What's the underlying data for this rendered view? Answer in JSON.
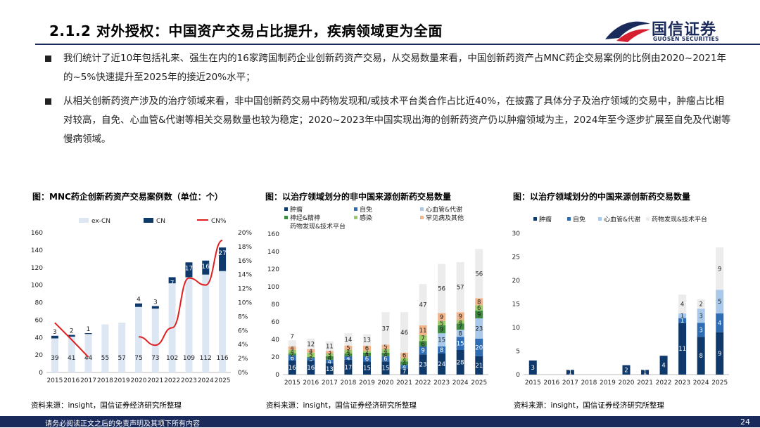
{
  "header": {
    "title": "2.1.2 对外授权：中国资产交易占比提升，疾病领域更为全面",
    "logo_cn": "国信证券",
    "logo_en": "GUOSEN SECURITIES"
  },
  "bullets": [
    "我们统计了近10年包括礼来、强生在内的16家跨国制药企业创新药资产交易，从交易数量来看，中国创新药资产占MNC药企交易案例的比例由2020~2021年的~5%快速提升至2025年的接近20%水平；",
    "从相关创新药资产涉及的治疗领域来看，非中国创新药交易中药物发现和/或技术平台类合作占比近40%，在披露了具体分子及治疗领域的交易中，肿瘤占比相对较高，自免、心血管&代谢等相关交易数量也较为稳定；2020~2023年中国实现出海的创新药资产仍以肿瘤领域为主，2024年至今逐步扩展至自免及代谢等慢病领域。"
  ],
  "charts": [
    {
      "title": "图：MNC药企创新药资产交易案例数（单位：个）",
      "source": "资料来源：insight，国信证券经济研究所整理"
    },
    {
      "title": "图：以治疗领域划分的非中国来源创新药交易数量",
      "source": "资料来源：insight，国信证券经济研究所整理"
    },
    {
      "title": "图：以治疗领域划分的中国来源创新药交易数量",
      "source": "资料来源：insight，国信证券经济研究所整理"
    }
  ],
  "footer": {
    "disclaimer": "请务必阅读正文之后的免责声明及其项下所有内容",
    "page": "24"
  },
  "colors": {
    "navy": "#1a2a5a",
    "excn": "#dde7f3",
    "cn": "#10396b",
    "red": "#e02020"
  },
  "chart_data": [
    {
      "type": "bar",
      "title": "MNC药企创新药资产交易案例数（单位：个）",
      "categories": [
        "2015",
        "2016",
        "2017",
        "2018",
        "2019",
        "2020",
        "2021",
        "2022",
        "2023",
        "2024",
        "2025"
      ],
      "series": [
        {
          "name": "ex-CN",
          "values": [
            39,
            41,
            44,
            55,
            57,
            75,
            73,
            102,
            109,
            112,
            116
          ]
        },
        {
          "name": "CN",
          "values": [
            3,
            2,
            1,
            0,
            0,
            4,
            3,
            7,
            17,
            16,
            27
          ]
        },
        {
          "name": "CN%",
          "values": [
            7.1,
            4.7,
            2.2,
            0,
            0,
            5.1,
            3.9,
            6.4,
            13.5,
            12.5,
            18.9
          ]
        }
      ],
      "ylim": [
        0,
        160
      ],
      "y2lim": [
        0,
        20
      ],
      "yticks": [
        "0",
        "20",
        "40",
        "60",
        "80",
        "100",
        "120",
        "140",
        "160"
      ],
      "y2ticks": [
        "0%",
        "2%",
        "4%",
        "6%",
        "8%",
        "10%",
        "12%",
        "14%",
        "16%",
        "18%",
        "20%"
      ]
    },
    {
      "type": "bar",
      "title": "以治疗领域划分的非中国来源创新药交易数量",
      "categories": [
        "2015",
        "2016",
        "2017",
        "2018",
        "2019",
        "2020",
        "2021",
        "2022",
        "2023",
        "2024",
        "2025"
      ],
      "series": [
        {
          "name": "肿瘤",
          "values": [
            16,
            16,
            13,
            17,
            15,
            15,
            7,
            23,
            24,
            28,
            21
          ]
        },
        {
          "name": "自免",
          "values": [
            6,
            3,
            4,
            4,
            6,
            6,
            4,
            9,
            8,
            15,
            20
          ]
        },
        {
          "name": "心血管&代谢",
          "values": [
            0,
            0,
            0,
            0,
            0,
            0,
            0,
            0,
            15,
            8,
            23
          ]
        },
        {
          "name": "神经&精神",
          "values": [
            2,
            1,
            4,
            3,
            4,
            4,
            4,
            6,
            9,
            7,
            9
          ]
        },
        {
          "name": "感染",
          "values": [
            4,
            5,
            3,
            4,
            2,
            4,
            4,
            7,
            5,
            4,
            6
          ]
        },
        {
          "name": "罕见病及其他",
          "values": [
            4,
            4,
            3,
            5,
            6,
            5,
            6,
            11,
            9,
            9,
            8
          ]
        },
        {
          "name": "药物发现&技术平台",
          "values": [
            7,
            12,
            11,
            14,
            13,
            37,
            46,
            47,
            56,
            57,
            56
          ]
        }
      ],
      "ylim": [
        0,
        160
      ],
      "yticks": [
        "0",
        "20",
        "40",
        "60",
        "80",
        "100",
        "120",
        "140",
        "160"
      ]
    },
    {
      "type": "bar",
      "title": "以治疗领域划分的中国来源创新药交易数量",
      "categories": [
        "2015",
        "2016",
        "2017",
        "2018",
        "2019",
        "2020",
        "2021",
        "2022",
        "2023",
        "2024",
        "2025"
      ],
      "series": [
        {
          "name": "肿瘤",
          "values": [
            3,
            0,
            1,
            0,
            0,
            2,
            1,
            4,
            11,
            8,
            9
          ]
        },
        {
          "name": "自免",
          "values": [
            0,
            0,
            0,
            0,
            0,
            0,
            0,
            0,
            1,
            3,
            4
          ]
        },
        {
          "name": "心血管&代谢",
          "values": [
            0,
            0,
            0,
            0,
            0,
            0,
            0,
            0,
            1,
            3,
            5
          ]
        },
        {
          "name": "药物发现&技术平台",
          "values": [
            0,
            0,
            0,
            0,
            0,
            0,
            0,
            0,
            4,
            2,
            9
          ]
        }
      ],
      "ylim": [
        0,
        30
      ],
      "yticks": [
        "0",
        "5",
        "10",
        "15",
        "20",
        "25",
        "30"
      ]
    }
  ]
}
